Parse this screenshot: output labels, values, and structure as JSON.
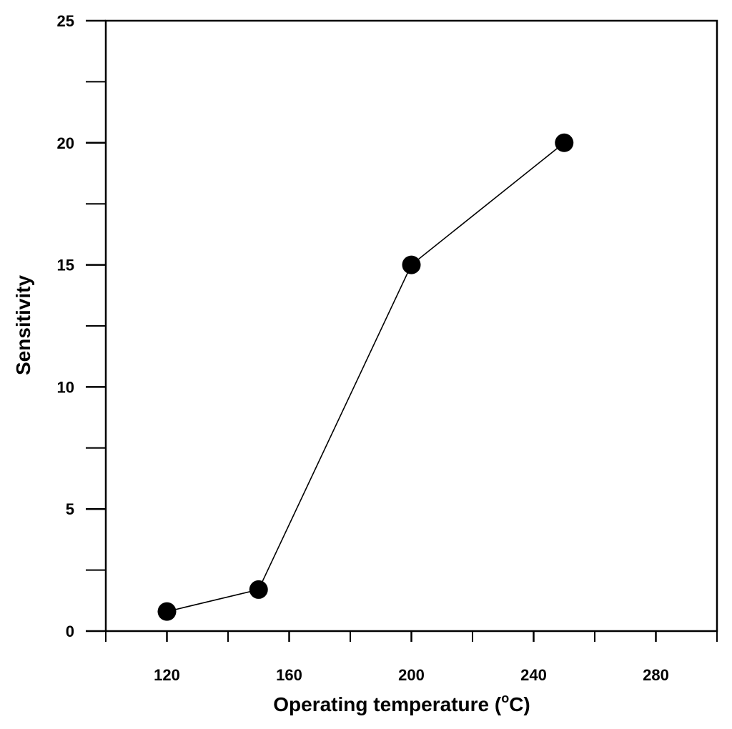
{
  "chart_data": {
    "type": "line",
    "xlabel_main": "Operating temperature (",
    "xlabel_sup": "o",
    "xlabel_tail": "C)",
    "ylabel": "Sensitivity",
    "xlim": [
      100,
      300
    ],
    "ylim": [
      0,
      25
    ],
    "x_ticks": [
      120,
      160,
      200,
      240,
      280
    ],
    "x_minor_ticks": [
      100,
      140,
      180,
      220,
      260,
      300
    ],
    "y_ticks": [
      0,
      5,
      10,
      15,
      20,
      25
    ],
    "y_minor_ticks": [
      2.5,
      7.5,
      12.5,
      17.5,
      22.5
    ],
    "grid": false,
    "series": [
      {
        "x": [
          120,
          150,
          200,
          250
        ],
        "y": [
          0.8,
          1.7,
          15,
          20
        ],
        "color": "#000000",
        "marker": "filled-circle"
      }
    ]
  }
}
